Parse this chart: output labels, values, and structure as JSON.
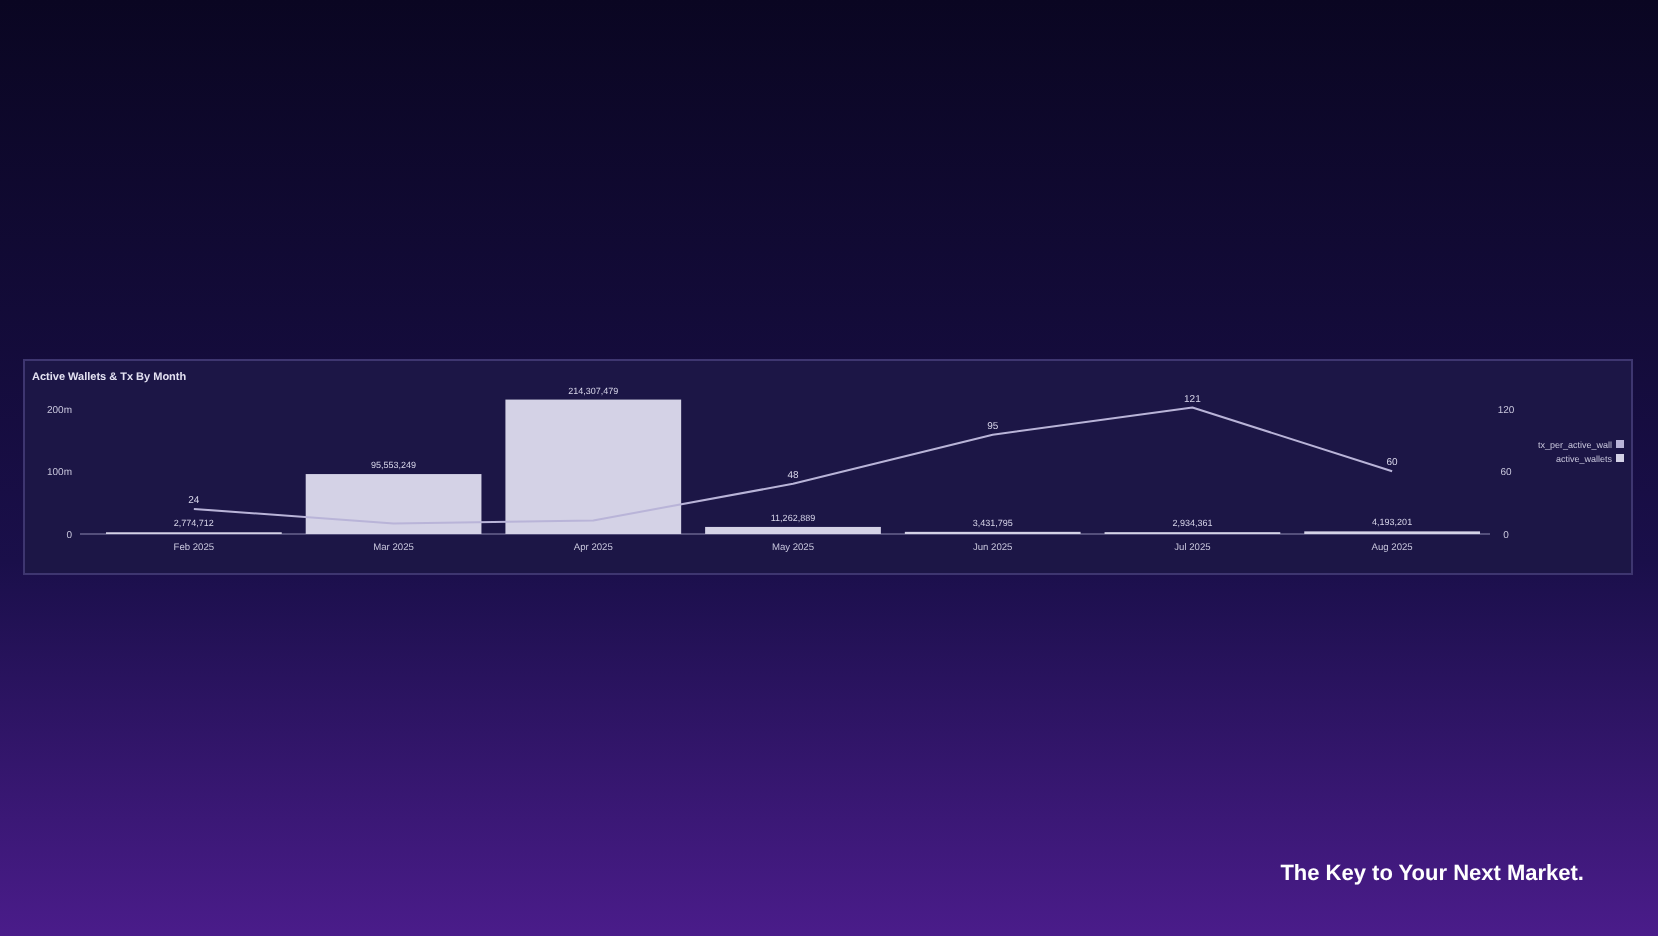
{
  "chart_data": {
    "type": "bar",
    "title": "Active Wallets & Tx By Month",
    "categories": [
      "Feb 2025",
      "Mar 2025",
      "Apr 2025",
      "May 2025",
      "Jun 2025",
      "Jul 2025",
      "Aug 2025"
    ],
    "series": [
      {
        "name": "active_wallets",
        "color": "#d4d2e6",
        "values": [
          2774712,
          95553249,
          214307479,
          11262889,
          3431795,
          2934361,
          4193201
        ],
        "value_labels": [
          "2,774,712",
          "95,553,249",
          "214,307,479",
          "11,262,889",
          "3,431,795",
          "2,934,361",
          "4,193,201"
        ]
      },
      {
        "name": "tx_per_active_wall",
        "type": "line",
        "axis": "y2",
        "color": "#b9b4d8",
        "values": [
          24,
          10,
          13,
          48,
          95,
          121,
          60
        ],
        "value_labels": [
          "24",
          null,
          null,
          "48",
          "95",
          "121",
          "60"
        ]
      }
    ],
    "ylim": [
      0,
      220000000
    ],
    "yticks": [
      {
        "value": 0,
        "label": "0"
      },
      {
        "value": 100000000,
        "label": "100m"
      },
      {
        "value": 200000000,
        "label": "200m"
      }
    ],
    "y2lim": [
      0,
      132
    ],
    "y2ticks": [
      0,
      60,
      120
    ],
    "legend": "right",
    "annotations": [
      "The Key to Your Next Market."
    ]
  }
}
